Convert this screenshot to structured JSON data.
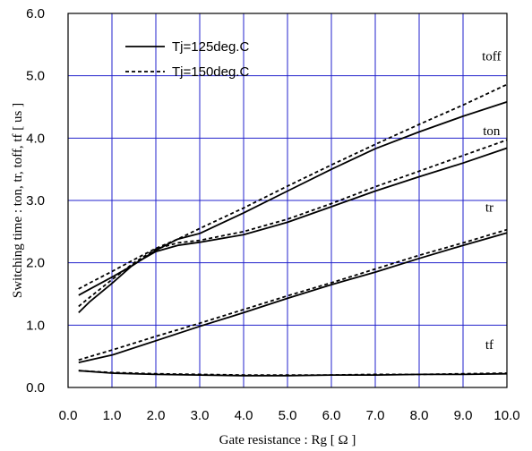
{
  "chart_data": {
    "type": "line",
    "title": "",
    "xlabel": "Gate resistance : Rg [ Ω ]",
    "ylabel": "Switching time : ton, tr, toff, tf [ us ]",
    "xlim": [
      0,
      10
    ],
    "ylim": [
      0,
      6
    ],
    "x_ticks": [
      "0.0",
      "1.0",
      "2.0",
      "3.0",
      "4.0",
      "5.0",
      "6.0",
      "7.0",
      "8.0",
      "9.0",
      "10.0"
    ],
    "y_ticks": [
      "0.0",
      "1.0",
      "2.0",
      "3.0",
      "4.0",
      "5.0",
      "6.0"
    ],
    "grid": true,
    "grid_color": "#2222cc",
    "legend_position": "top-left",
    "legend": [
      {
        "name": "Tj=125deg.C",
        "style": "solid"
      },
      {
        "name": "Tj=150deg.C",
        "style": "dashed"
      }
    ],
    "series": [
      {
        "label": "toff",
        "condition": "Tj=125deg.C",
        "style": "solid",
        "x": [
          0.24,
          0.5,
          1.0,
          1.5,
          2.0,
          2.5,
          3.0,
          4.0,
          5.0,
          6.0,
          7.0,
          8.0,
          9.0,
          10.0
        ],
        "y": [
          1.48,
          1.58,
          1.77,
          1.97,
          2.2,
          2.38,
          2.47,
          2.8,
          3.15,
          3.5,
          3.83,
          4.1,
          4.35,
          4.58
        ]
      },
      {
        "label": "toff",
        "condition": "Tj=150deg.C",
        "style": "dashed",
        "x": [
          0.24,
          0.5,
          1.0,
          1.5,
          2.0,
          2.5,
          3.0,
          4.0,
          5.0,
          6.0,
          7.0,
          8.0,
          9.0,
          10.0
        ],
        "y": [
          1.58,
          1.68,
          1.86,
          2.05,
          2.23,
          2.38,
          2.55,
          2.88,
          3.23,
          3.57,
          3.9,
          4.22,
          4.53,
          4.86
        ]
      },
      {
        "label": "ton",
        "condition": "Tj=125deg.C",
        "style": "solid",
        "x": [
          0.24,
          0.5,
          1.0,
          1.5,
          2.0,
          2.5,
          3.0,
          4.0,
          5.0,
          6.0,
          7.0,
          8.0,
          9.0,
          10.0
        ],
        "y": [
          1.2,
          1.38,
          1.67,
          1.98,
          2.18,
          2.28,
          2.33,
          2.45,
          2.65,
          2.9,
          3.15,
          3.38,
          3.6,
          3.84
        ]
      },
      {
        "label": "ton",
        "condition": "Tj=150deg.C",
        "style": "dashed",
        "x": [
          0.24,
          0.5,
          1.0,
          1.5,
          2.0,
          2.5,
          3.0,
          4.0,
          5.0,
          6.0,
          7.0,
          8.0,
          9.0,
          10.0
        ],
        "y": [
          1.3,
          1.45,
          1.73,
          2.0,
          2.22,
          2.32,
          2.36,
          2.5,
          2.7,
          2.95,
          3.22,
          3.47,
          3.72,
          3.97
        ]
      },
      {
        "label": "tr",
        "condition": "Tj=125deg.C",
        "style": "solid",
        "x": [
          0.24,
          1.0,
          2.0,
          3.0,
          4.0,
          5.0,
          6.0,
          7.0,
          8.0,
          9.0,
          10.0
        ],
        "y": [
          0.4,
          0.52,
          0.75,
          0.98,
          1.2,
          1.43,
          1.65,
          1.85,
          2.07,
          2.28,
          2.48
        ]
      },
      {
        "label": "tr",
        "condition": "Tj=150deg.C",
        "style": "dashed",
        "x": [
          0.24,
          1.0,
          2.0,
          3.0,
          4.0,
          5.0,
          6.0,
          7.0,
          8.0,
          9.0,
          10.0
        ],
        "y": [
          0.44,
          0.6,
          0.82,
          1.03,
          1.25,
          1.47,
          1.68,
          1.9,
          2.12,
          2.32,
          2.53
        ]
      },
      {
        "label": "tf",
        "condition": "Tj=125deg.C",
        "style": "solid",
        "x": [
          0.24,
          1.0,
          2.0,
          3.0,
          4.0,
          5.0,
          6.0,
          7.0,
          8.0,
          9.0,
          10.0
        ],
        "y": [
          0.27,
          0.23,
          0.21,
          0.2,
          0.19,
          0.19,
          0.2,
          0.2,
          0.21,
          0.21,
          0.22
        ]
      },
      {
        "label": "tf",
        "condition": "Tj=150deg.C",
        "style": "dashed",
        "x": [
          0.24,
          1.0,
          2.0,
          3.0,
          4.0,
          5.0,
          6.0,
          7.0,
          8.0,
          9.0,
          10.0
        ],
        "y": [
          0.27,
          0.24,
          0.22,
          0.21,
          0.2,
          0.2,
          0.2,
          0.21,
          0.21,
          0.22,
          0.23
        ]
      }
    ],
    "series_labels": [
      {
        "text": "toff",
        "x": 9.65,
        "y": 5.25
      },
      {
        "text": "ton",
        "x": 9.65,
        "y": 4.05
      },
      {
        "text": "tr",
        "x": 9.6,
        "y": 2.82
      },
      {
        "text": "tf",
        "x": 9.6,
        "y": 0.62
      }
    ]
  }
}
